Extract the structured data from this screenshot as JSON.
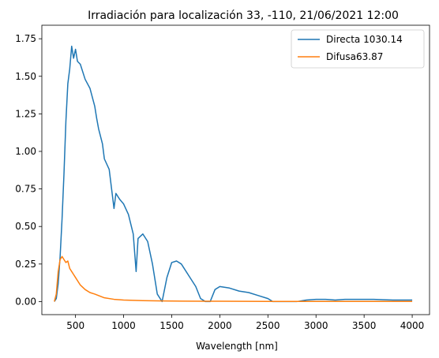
{
  "chart_data": {
    "type": "line",
    "title": "Irradiación para localización 33, -110, 21/06/2021 12:00",
    "xlabel": "Wavelength [nm]",
    "ylabel": "",
    "xlim": [
      150,
      4180
    ],
    "ylim": [
      -0.087,
      1.84
    ],
    "x_ticks": [
      500,
      1000,
      1500,
      2000,
      2500,
      3000,
      3500,
      4000
    ],
    "x_tick_labels": [
      "500",
      "1000",
      "1500",
      "2000",
      "2500",
      "3000",
      "3500",
      "4000"
    ],
    "y_ticks": [
      0.0,
      0.25,
      0.5,
      0.75,
      1.0,
      1.25,
      1.5,
      1.75
    ],
    "y_tick_labels": [
      "0.00",
      "0.25",
      "0.50",
      "0.75",
      "1.00",
      "1.25",
      "1.50",
      "1.75"
    ],
    "grid": false,
    "legend_position": "top-right",
    "series": [
      {
        "name": "Directa 1030.14",
        "color": "#1f77b4",
        "x": [
          280,
          300,
          320,
          340,
          360,
          380,
          400,
          420,
          440,
          460,
          480,
          500,
          520,
          550,
          600,
          650,
          700,
          720,
          740,
          760,
          780,
          800,
          850,
          900,
          920,
          940,
          960,
          1000,
          1050,
          1100,
          1130,
          1150,
          1200,
          1250,
          1300,
          1350,
          1400,
          1450,
          1500,
          1550,
          1600,
          1700,
          1750,
          1800,
          1850,
          1900,
          1950,
          2000,
          2100,
          2200,
          2300,
          2400,
          2500,
          2550,
          2600,
          2700,
          2800,
          2900,
          3000,
          3100,
          3200,
          3300,
          3400,
          3500,
          3600,
          3700,
          3800,
          3900,
          4000
        ],
        "y": [
          0.0,
          0.02,
          0.12,
          0.3,
          0.55,
          0.85,
          1.2,
          1.45,
          1.55,
          1.7,
          1.62,
          1.68,
          1.6,
          1.58,
          1.48,
          1.42,
          1.3,
          1.22,
          1.15,
          1.1,
          1.05,
          0.95,
          0.88,
          0.62,
          0.72,
          0.7,
          0.68,
          0.65,
          0.58,
          0.45,
          0.2,
          0.42,
          0.45,
          0.4,
          0.25,
          0.05,
          0.0,
          0.16,
          0.26,
          0.27,
          0.25,
          0.15,
          0.1,
          0.02,
          0.0,
          0.0,
          0.08,
          0.1,
          0.09,
          0.07,
          0.06,
          0.04,
          0.02,
          0.0,
          0.0,
          0.0,
          0.0,
          0.01,
          0.015,
          0.015,
          0.01,
          0.015,
          0.015,
          0.015,
          0.015,
          0.012,
          0.01,
          0.01,
          0.01
        ]
      },
      {
        "name": "Difusa63.87",
        "color": "#ff7f0e",
        "x": [
          280,
          300,
          320,
          340,
          360,
          380,
          400,
          420,
          440,
          460,
          480,
          500,
          550,
          600,
          650,
          700,
          800,
          900,
          1000,
          1200,
          1400,
          1600,
          2000,
          2500,
          3000,
          3500,
          4000
        ],
        "y": [
          0.0,
          0.05,
          0.2,
          0.28,
          0.3,
          0.28,
          0.26,
          0.27,
          0.22,
          0.2,
          0.18,
          0.16,
          0.11,
          0.08,
          0.06,
          0.05,
          0.025,
          0.015,
          0.01,
          0.006,
          0.004,
          0.003,
          0.002,
          0.001,
          0.001,
          0.001,
          0.001
        ]
      }
    ]
  }
}
